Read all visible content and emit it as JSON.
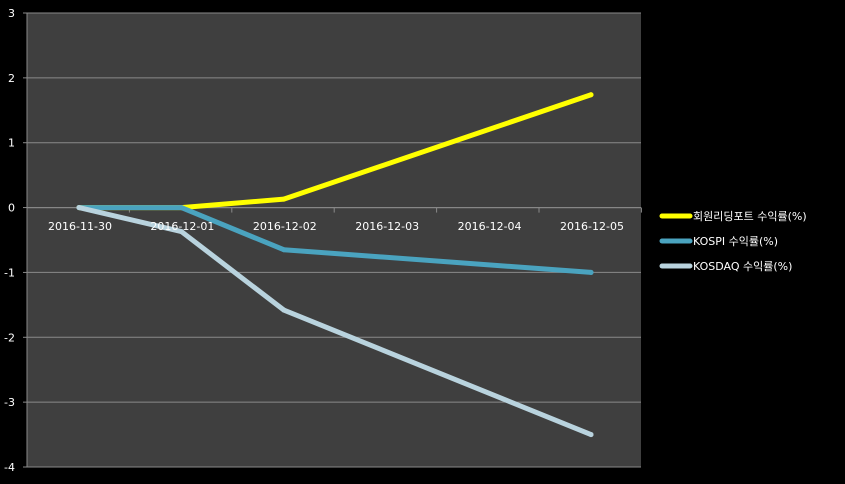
{
  "chart_data": {
    "type": "line",
    "categories": [
      "2016-11-30",
      "2016-12-01",
      "2016-12-02",
      "2016-12-03",
      "2016-12-04",
      "2016-12-05"
    ],
    "series": [
      {
        "name": "회원리딩포트 수익률(%)",
        "color": "#ffff00",
        "points": [
          {
            "x": "2016-11-30",
            "y": 0
          },
          {
            "x": "2016-12-01",
            "y": 0
          },
          {
            "x": "2016-12-02",
            "y": 0.13
          },
          {
            "x": "2016-12-05",
            "y": 1.74
          }
        ]
      },
      {
        "name": "KOSPI 수익률(%)",
        "color": "#4aa3bf",
        "points": [
          {
            "x": "2016-11-30",
            "y": 0
          },
          {
            "x": "2016-12-01",
            "y": 0
          },
          {
            "x": "2016-12-02",
            "y": -0.65
          },
          {
            "x": "2016-12-05",
            "y": -1.0
          }
        ]
      },
      {
        "name": "KOSDAQ 수익률(%)",
        "color": "#b9d3de",
        "points": [
          {
            "x": "2016-11-30",
            "y": 0
          },
          {
            "x": "2016-12-01",
            "y": -0.37
          },
          {
            "x": "2016-12-02",
            "y": -1.58
          },
          {
            "x": "2016-12-05",
            "y": -3.5
          }
        ]
      }
    ],
    "y_ticks": [
      "3",
      "2",
      "1",
      "0",
      "-1",
      "-2",
      "-3",
      "-4"
    ],
    "ylim": [
      -4,
      3
    ],
    "grid": true,
    "legend_position": "right",
    "plot_background": "#3f3f3f",
    "page_background": "#000000",
    "gridline_color": "#8a8a8a",
    "text_color": "#ffffff"
  }
}
